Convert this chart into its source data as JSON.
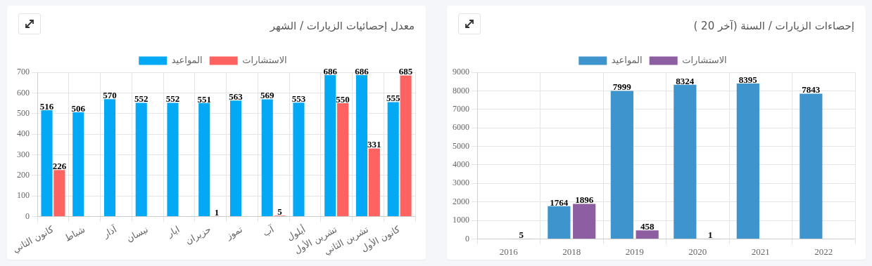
{
  "chart_data": [
    {
      "type": "bar",
      "title": "معدل إحصائيات الزيارات / الشهر",
      "categories": [
        "كانون الثاني",
        "شباط",
        "آذار",
        "نيسان",
        "ايار",
        "حزيران",
        "تموز",
        "آب",
        "أيلول",
        "تشرين الأول",
        "تشرين الثاني",
        "كانون الأول"
      ],
      "series": [
        {
          "name": "المواعيد",
          "color": "#03a9f4",
          "values": [
            516,
            506,
            570,
            552,
            552,
            551,
            563,
            569,
            553,
            686,
            686,
            555
          ]
        },
        {
          "name": "الاستشارات",
          "color": "#ff6361",
          "values": [
            226,
            null,
            null,
            null,
            null,
            1,
            null,
            5,
            null,
            550,
            331,
            685
          ]
        }
      ],
      "ylim": [
        0,
        700
      ],
      "yticks": [
        0,
        100,
        200,
        300,
        400,
        500,
        600,
        700
      ],
      "grid": true,
      "legend": "top",
      "data_labels": true
    },
    {
      "type": "bar",
      "title": "إحصاءات الزيارات / السنة (آخر 20 )",
      "categories": [
        "2016",
        "2018",
        "2019",
        "2020",
        "2021",
        "2022"
      ],
      "series": [
        {
          "name": "المواعيد",
          "color": "#3e95cd",
          "values": [
            null,
            1764,
            7999,
            8324,
            8395,
            7843
          ]
        },
        {
          "name": "الاستشارات",
          "color": "#8e5ea2",
          "values": [
            5,
            1896,
            458,
            1,
            null,
            null
          ]
        }
      ],
      "ylim": [
        0,
        9000
      ],
      "yticks": [
        0,
        1000,
        2000,
        3000,
        4000,
        5000,
        6000,
        7000,
        8000,
        9000
      ],
      "grid": true,
      "legend": "top",
      "data_labels": true
    }
  ]
}
